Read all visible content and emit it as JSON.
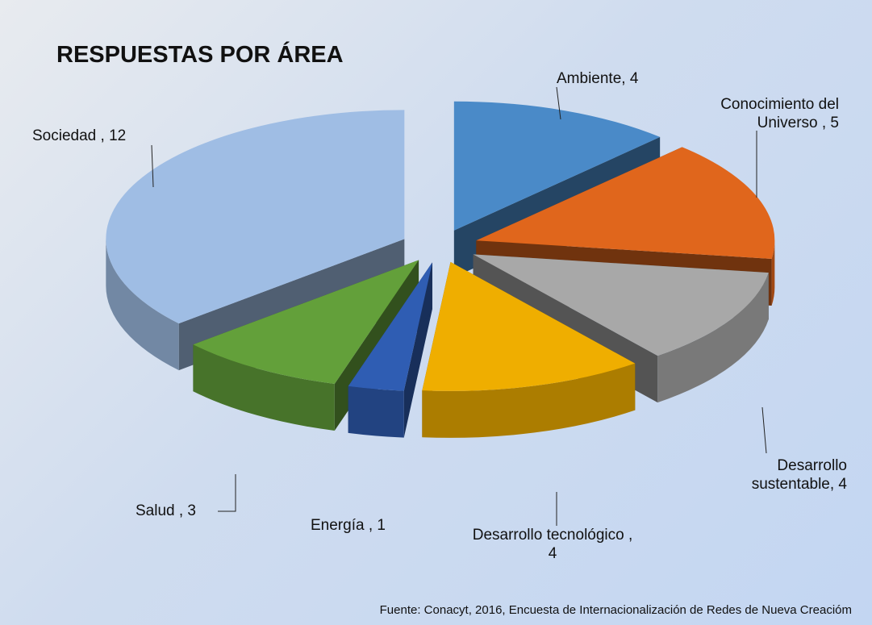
{
  "chart_data": {
    "type": "pie",
    "title": "RESPUESTAS POR ÁREA",
    "values": [
      4,
      5,
      4,
      4,
      1,
      3,
      12
    ],
    "value_labels": [
      "Ambiente, 4",
      "Conocimiento del Universo , 5",
      "Desarrollo sustentable, 4",
      "Desarrollo tecnológico , 4",
      "Energía , 1",
      "Salud , 3",
      "Sociedad , 12"
    ],
    "colors": [
      "#4a8ac8",
      "#e0661c",
      "#a8a8a8",
      "#efae00",
      "#2f5db3",
      "#63a03a",
      "#9fbde4"
    ],
    "source": "Fuente: Conacyt, 2016, Encuesta de Internacionalización de Redes de Nueva Creacióm"
  }
}
